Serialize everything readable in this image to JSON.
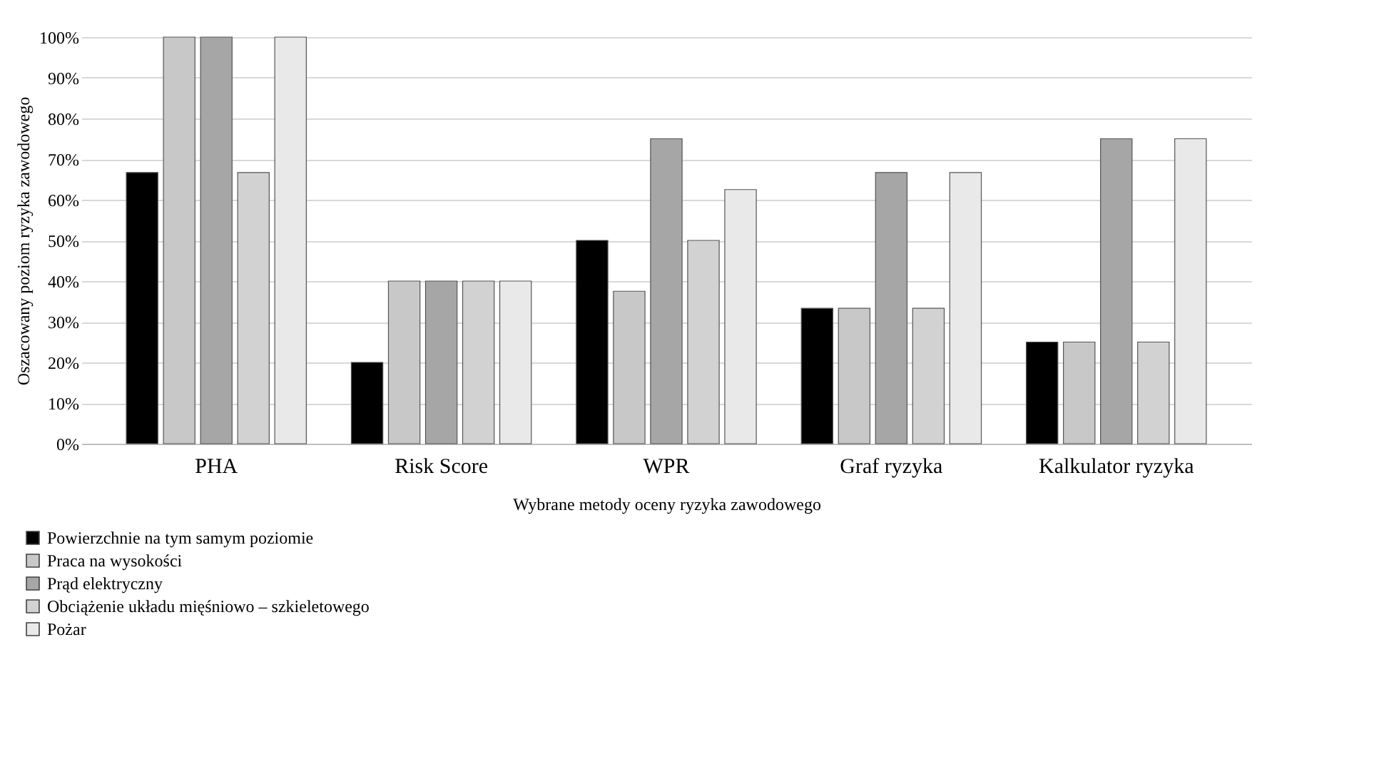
{
  "chart_data": {
    "type": "bar",
    "xlabel": "Wybrane metody oceny ryzyka zawodowego",
    "ylabel": "Oszacowany poziom ryzyka zawodowego",
    "categories": [
      "PHA",
      "Risk Score",
      "WPR",
      "Graf ryzyka",
      "Kalkulator ryzyka"
    ],
    "series": [
      {
        "name": "Powierzchnie na tym samym poziomie",
        "color": "#000000",
        "values": [
          66.7,
          20,
          50,
          33.3,
          25
        ]
      },
      {
        "name": "Praca na wysokości",
        "color": "#c8c8c8",
        "values": [
          100,
          40,
          37.5,
          33.3,
          25
        ]
      },
      {
        "name": "Prąd elektryczny",
        "color": "#a6a6a6",
        "values": [
          100,
          40,
          75,
          66.7,
          75
        ]
      },
      {
        "name": "Obciążenie układu mięśniowo – szkieletowego",
        "color": "#d2d2d2",
        "values": [
          66.7,
          40,
          50,
          33.3,
          25
        ]
      },
      {
        "name": "Pożar",
        "color": "#e9e9e9",
        "values": [
          100,
          40,
          62.5,
          66.7,
          75
        ]
      }
    ],
    "ylim": [
      0,
      100
    ],
    "yticks": [
      {
        "value": 0,
        "label": "0%"
      },
      {
        "value": 10,
        "label": "10%"
      },
      {
        "value": 20,
        "label": "20%"
      },
      {
        "value": 30,
        "label": "30%"
      },
      {
        "value": 40,
        "label": "40%"
      },
      {
        "value": 50,
        "label": "50%"
      },
      {
        "value": 60,
        "label": "60%"
      },
      {
        "value": 70,
        "label": "70%"
      },
      {
        "value": 80,
        "label": "80%"
      },
      {
        "value": 90,
        "label": "90%"
      },
      {
        "value": 100,
        "label": "100%"
      }
    ],
    "grid": "y",
    "legend": "bottom left"
  }
}
